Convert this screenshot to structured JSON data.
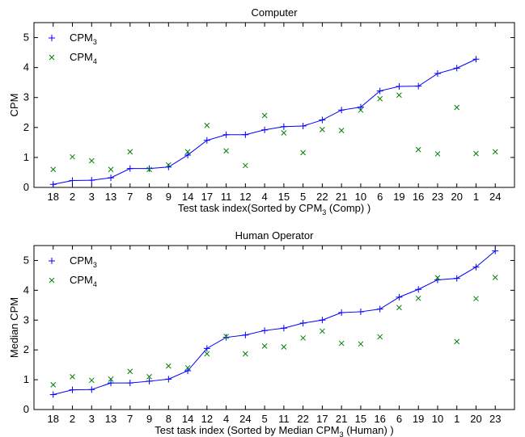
{
  "chart_data": [
    {
      "type": "line",
      "title": "Computer",
      "ylabel": "CPM",
      "xlabel": {
        "prefix": "Test task index(Sorted by CPM",
        "sub": "3",
        "suffix": " (Comp) )"
      },
      "ylim": [
        0,
        5.5
      ],
      "yticks": [
        0,
        1,
        2,
        3,
        4,
        5
      ],
      "categories": [
        "18",
        "2",
        "3",
        "13",
        "7",
        "8",
        "9",
        "14",
        "17",
        "11",
        "12",
        "4",
        "15",
        "5",
        "22",
        "21",
        "10",
        "6",
        "19",
        "16",
        "23",
        "20",
        "1",
        "24"
      ],
      "series": [
        {
          "name_main": "CPM",
          "name_sub": "3",
          "marker": "plus",
          "color": "#0000ff",
          "line": true,
          "values": [
            0.1,
            0.23,
            0.24,
            0.32,
            0.63,
            0.63,
            0.68,
            1.08,
            1.57,
            1.76,
            1.76,
            1.92,
            2.03,
            2.05,
            2.25,
            2.58,
            2.68,
            3.22,
            3.37,
            3.38,
            3.8,
            3.98,
            4.28,
            null
          ]
        },
        {
          "name_main": "CPM",
          "name_sub": "4",
          "marker": "x",
          "color": "#008000",
          "line": false,
          "values": [
            0.6,
            1.02,
            0.89,
            0.6,
            1.19,
            0.6,
            0.75,
            1.19,
            2.07,
            1.22,
            0.73,
            2.4,
            1.82,
            1.16,
            1.93,
            1.9,
            2.58,
            2.96,
            3.08,
            1.26,
            1.12,
            2.67,
            1.13,
            1.19
          ]
        }
      ]
    },
    {
      "type": "line",
      "title": "Human Operator",
      "ylabel": "Median CPM",
      "xlabel": {
        "prefix": "Test task index (Sorted by Median CPM",
        "sub": "3",
        "suffix": " (Human) )"
      },
      "ylim": [
        0,
        5.5
      ],
      "yticks": [
        0,
        1,
        2,
        3,
        4,
        5
      ],
      "categories": [
        "18",
        "2",
        "3",
        "13",
        "7",
        "9",
        "8",
        "14",
        "12",
        "4",
        "24",
        "5",
        "11",
        "22",
        "17",
        "21",
        "15",
        "16",
        "6",
        "19",
        "10",
        "1",
        "20",
        "23"
      ],
      "series": [
        {
          "name_main": "CPM",
          "name_sub": "3",
          "marker": "plus",
          "color": "#0000ff",
          "line": true,
          "values": [
            0.5,
            0.66,
            0.67,
            0.89,
            0.89,
            0.95,
            1.02,
            1.3,
            2.05,
            2.42,
            2.5,
            2.65,
            2.73,
            2.9,
            3.0,
            3.25,
            3.28,
            3.37,
            3.77,
            4.03,
            4.35,
            4.4,
            4.78,
            5.32
          ]
        },
        {
          "name_main": "CPM",
          "name_sub": "4",
          "marker": "x",
          "color": "#008000",
          "line": false,
          "values": [
            0.83,
            1.1,
            0.98,
            1.02,
            1.28,
            1.1,
            1.46,
            1.4,
            1.87,
            2.45,
            1.87,
            2.13,
            2.1,
            2.4,
            2.63,
            2.22,
            2.2,
            2.44,
            3.42,
            3.73,
            4.42,
            2.28,
            3.72,
            4.43
          ]
        }
      ]
    }
  ]
}
